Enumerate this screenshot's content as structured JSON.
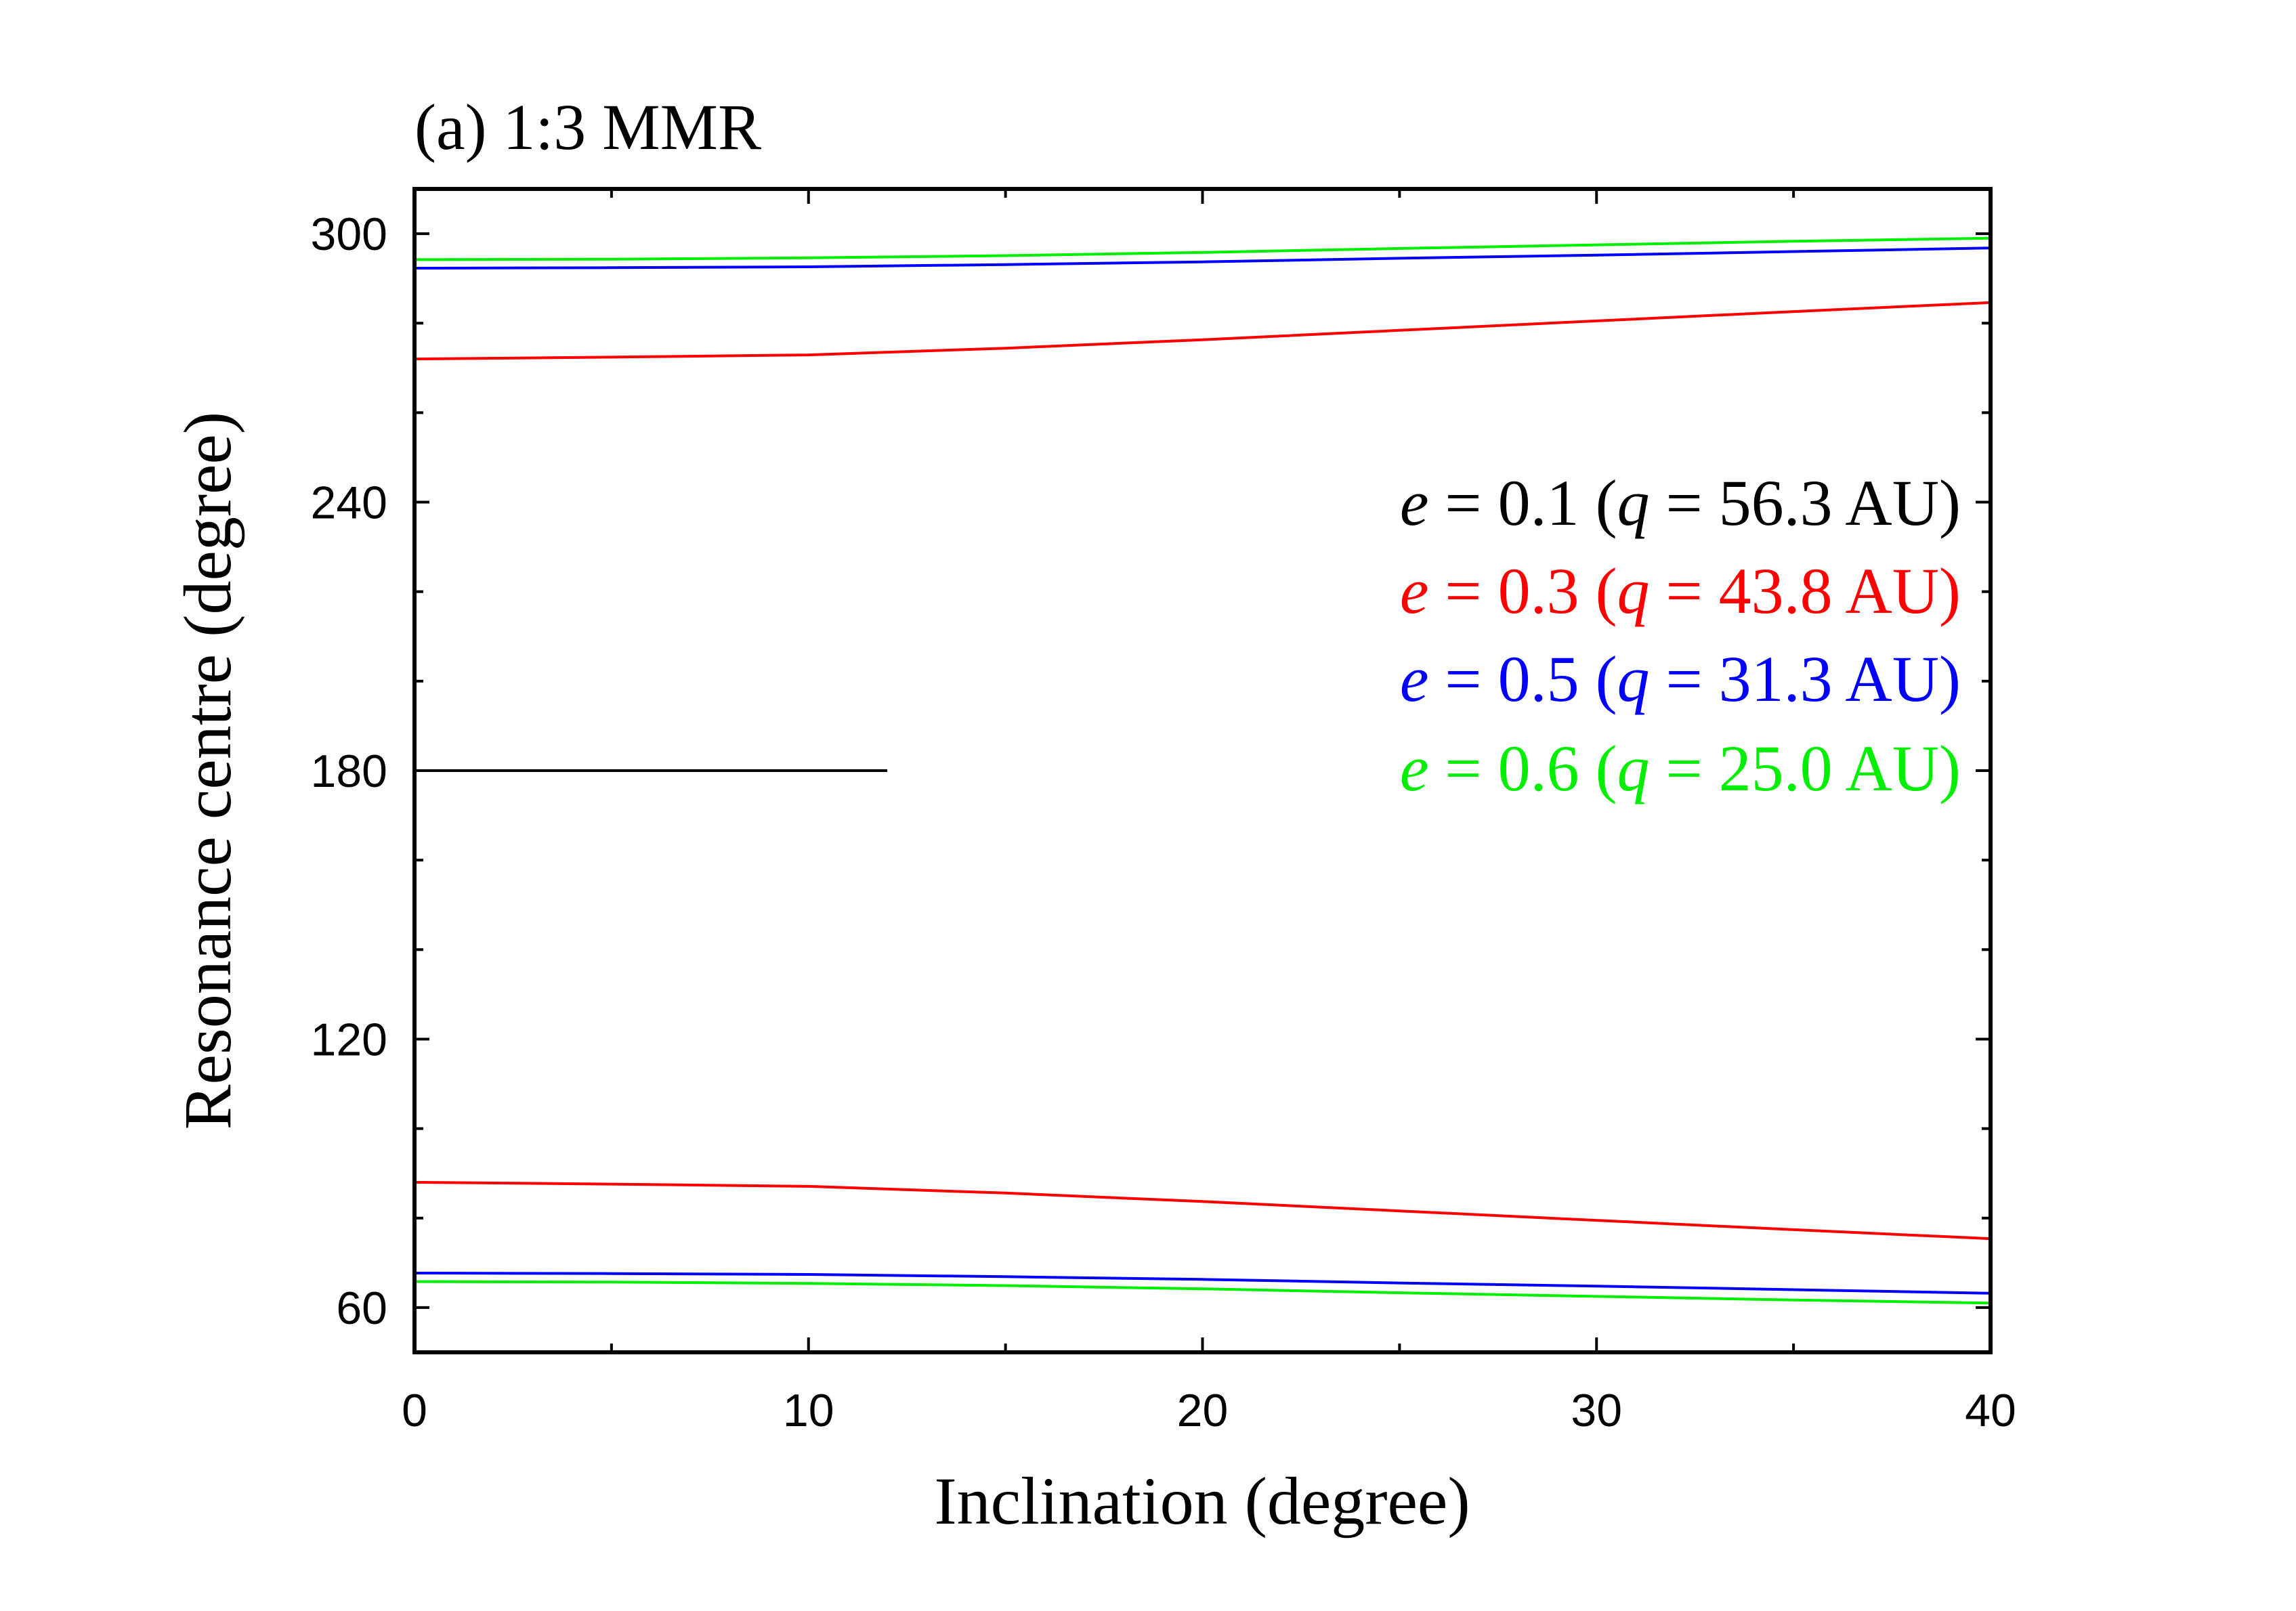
{
  "chart_data": {
    "type": "line",
    "title": "(a) 1:3 MMR",
    "xlabel": "Inclination (degree)",
    "ylabel": "Resonance centre (degree)",
    "xlim": [
      0,
      40
    ],
    "ylim": [
      50,
      310
    ],
    "xticks": [
      0,
      10,
      20,
      30,
      40
    ],
    "yticks": [
      60,
      120,
      180,
      240,
      300
    ],
    "grid": false,
    "legend_position": "right",
    "series": [
      {
        "name": "e = 0.1 (q = 56.3 AU)",
        "legend": {
          "e": "e",
          "e_text": " = 0.1 (",
          "q": "q",
          "q_text": " = 56.3 AU)"
        },
        "color": "#000000",
        "branches": [
          {
            "x": [
              0,
              12
            ],
            "y": [
              180,
              180
            ]
          }
        ]
      },
      {
        "name": "e = 0.3 (q = 43.8 AU)",
        "legend": {
          "e": "e",
          "e_text": " = 0.3 (",
          "q": "q",
          "q_text": " = 43.8 AU)"
        },
        "color": "#ff0000",
        "branches": [
          {
            "x": [
              0,
              5,
              10,
              15,
              20,
              25,
              30,
              35,
              40
            ],
            "y": [
              272.0,
              272.4,
              272.9,
              274.4,
              276.3,
              278.4,
              280.5,
              282.6,
              284.6
            ]
          },
          {
            "x": [
              0,
              5,
              10,
              15,
              20,
              25,
              30,
              35,
              40
            ],
            "y": [
              88.0,
              87.6,
              87.1,
              85.6,
              83.7,
              81.6,
              79.5,
              77.4,
              75.4
            ]
          }
        ]
      },
      {
        "name": "e = 0.5 (q = 31.3 AU)",
        "legend": {
          "e": "e",
          "e_text": " = 0.5 (",
          "q": "q",
          "q_text": " = 31.3 AU)"
        },
        "color": "#0000ff",
        "branches": [
          {
            "x": [
              0,
              5,
              10,
              15,
              20,
              25,
              30,
              35,
              40
            ],
            "y": [
              292.3,
              292.4,
              292.6,
              293.1,
              293.7,
              294.5,
              295.2,
              296.0,
              296.8
            ]
          },
          {
            "x": [
              0,
              5,
              10,
              15,
              20,
              25,
              30,
              35,
              40
            ],
            "y": [
              67.7,
              67.6,
              67.4,
              66.9,
              66.3,
              65.5,
              64.8,
              64.0,
              63.2
            ]
          }
        ]
      },
      {
        "name": "e = 0.6 (q = 25.0 AU)",
        "legend": {
          "e": "e",
          "e_text": " = 0.6 (",
          "q": "q",
          "q_text": " = 25.0 AU)"
        },
        "color": "#00ee00",
        "branches": [
          {
            "x": [
              0,
              5,
              10,
              15,
              20,
              25,
              30,
              35,
              40
            ],
            "y": [
              294.2,
              294.3,
              294.6,
              295.1,
              295.8,
              296.7,
              297.5,
              298.3,
              299.0
            ]
          },
          {
            "x": [
              0,
              5,
              10,
              15,
              20,
              25,
              30,
              35,
              40
            ],
            "y": [
              65.8,
              65.7,
              65.4,
              64.9,
              64.2,
              63.3,
              62.5,
              61.7,
              61.0
            ]
          }
        ]
      }
    ]
  }
}
